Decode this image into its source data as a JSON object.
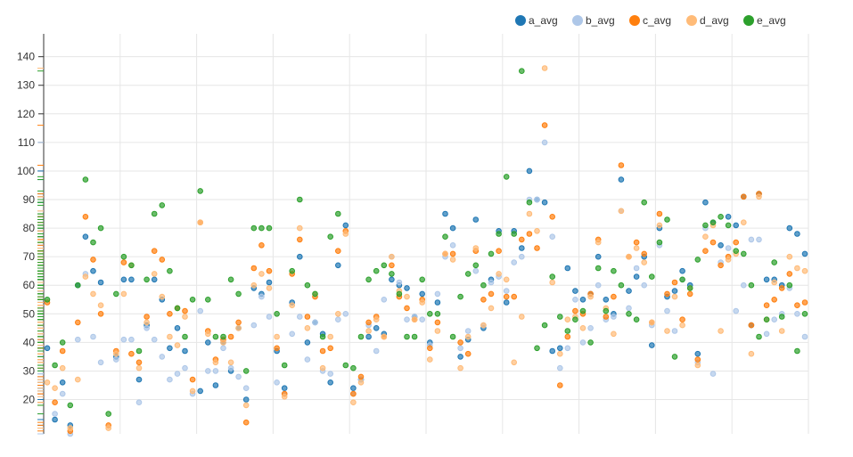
{
  "chart_data": {
    "type": "scatter",
    "title": "",
    "xlabel": "",
    "ylabel": "",
    "ylim": [
      8,
      148
    ],
    "yticks": [
      20,
      30,
      40,
      50,
      60,
      70,
      80,
      90,
      100,
      110,
      120,
      130,
      140
    ],
    "grid": true,
    "legend_position": "top-right",
    "x_count": 100,
    "series": [
      {
        "name": "a_avg",
        "color": "#1f77b4",
        "values": [
          38,
          13,
          26,
          11,
          60,
          77,
          65,
          61,
          null,
          35,
          62,
          62,
          27,
          46,
          62,
          55,
          38,
          45,
          37,
          null,
          23,
          40,
          25,
          40,
          30,
          45,
          20,
          59,
          57,
          61,
          37,
          24,
          54,
          70,
          40,
          47,
          43,
          26,
          67,
          81,
          24,
          27,
          42,
          45,
          43,
          62,
          60,
          59,
          49,
          57,
          40,
          54,
          85,
          80,
          35,
          41,
          83,
          45,
          62,
          79,
          54,
          79,
          73,
          100,
          90,
          89,
          37,
          38,
          66,
          58,
          55,
          57,
          70,
          55,
          50,
          97,
          58,
          63,
          70,
          39,
          80,
          56,
          58,
          65,
          60,
          36,
          89,
          82,
          74,
          84,
          81,
          91,
          46,
          92,
          62,
          62,
          60,
          80,
          78,
          71
        ]
      },
      {
        "name": "b_avg",
        "color": "#aec7e8",
        "values": [
          null,
          15,
          22,
          8,
          41,
          64,
          42,
          33,
          null,
          34,
          41,
          41,
          19,
          45,
          41,
          35,
          27,
          29,
          31,
          22,
          51,
          30,
          30,
          38,
          31,
          28,
          24,
          46,
          56,
          49,
          26,
          22,
          43,
          49,
          34,
          47,
          30,
          29,
          48,
          50,
          22,
          27,
          46,
          37,
          55,
          70,
          61,
          48,
          49,
          48,
          39,
          57,
          70,
          74,
          38,
          44,
          65,
          46,
          61,
          63,
          58,
          68,
          70,
          90,
          90,
          110,
          77,
          31,
          38,
          55,
          40,
          45,
          60,
          48,
          49,
          86,
          52,
          66,
          60,
          46,
          74,
          51,
          44,
          62,
          59,
          33,
          80,
          29,
          68,
          73,
          51,
          60,
          76,
          76,
          43,
          48,
          50,
          59,
          50,
          42
        ]
      },
      {
        "name": "c_avg",
        "color": "#ff7f0e",
        "values": [
          54,
          19,
          37,
          9,
          47,
          84,
          69,
          50,
          11,
          37,
          68,
          36,
          33,
          49,
          72,
          69,
          50,
          52,
          51,
          27,
          82,
          44,
          34,
          41,
          42,
          47,
          12,
          66,
          74,
          65,
          38,
          22,
          64,
          76,
          49,
          56,
          37,
          38,
          72,
          79,
          22,
          28,
          47,
          49,
          42,
          67,
          56,
          52,
          48,
          55,
          38,
          47,
          71,
          71,
          40,
          36,
          72,
          55,
          57,
          72,
          56,
          56,
          76,
          78,
          73,
          116,
          84,
          25,
          42,
          51,
          50,
          57,
          76,
          49,
          56,
          102,
          70,
          75,
          71,
          47,
          85,
          57,
          61,
          48,
          57,
          34,
          72,
          75,
          67,
          70,
          75,
          91,
          46,
          92,
          53,
          55,
          59,
          64,
          53,
          54
        ]
      },
      {
        "name": "d_avg",
        "color": "#ffbb78",
        "values": [
          26,
          24,
          31,
          10,
          27,
          63,
          57,
          53,
          10,
          36,
          57,
          67,
          31,
          47,
          64,
          56,
          42,
          39,
          49,
          23,
          82,
          43,
          33,
          40,
          33,
          45,
          18,
          60,
          64,
          59,
          42,
          21,
          53,
          80,
          45,
          57,
          31,
          42,
          50,
          78,
          19,
          26,
          44,
          48,
          42,
          70,
          58,
          56,
          48,
          54,
          34,
          44,
          71,
          69,
          31,
          42,
          73,
          46,
          52,
          64,
          62,
          33,
          49,
          85,
          79,
          136,
          61,
          36,
          48,
          49,
          45,
          56,
          75,
          52,
          43,
          86,
          70,
          73,
          68,
          47,
          81,
          44,
          56,
          46,
          59,
          32,
          77,
          81,
          44,
          69,
          71,
          82,
          36,
          91,
          48,
          61,
          44,
          70,
          66,
          65
        ]
      },
      {
        "name": "e_avg",
        "color": "#2ca02c",
        "values": [
          55,
          32,
          40,
          18,
          60,
          97,
          75,
          80,
          15,
          57,
          70,
          67,
          37,
          62,
          85,
          88,
          65,
          52,
          42,
          55,
          93,
          55,
          42,
          42,
          62,
          57,
          30,
          80,
          80,
          80,
          50,
          32,
          65,
          90,
          60,
          57,
          42,
          77,
          85,
          32,
          31,
          42,
          62,
          65,
          67,
          64,
          57,
          42,
          42,
          62,
          50,
          50,
          77,
          42,
          56,
          64,
          67,
          60,
          71,
          78,
          98,
          78,
          135,
          89,
          38,
          46,
          63,
          49,
          44,
          48,
          51,
          40,
          66,
          51,
          65,
          60,
          50,
          48,
          89,
          63,
          75,
          83,
          35,
          62,
          59,
          69,
          81,
          82,
          84,
          81,
          72,
          71,
          60,
          42,
          48,
          68,
          49,
          60,
          37,
          50
        ]
      }
    ]
  }
}
